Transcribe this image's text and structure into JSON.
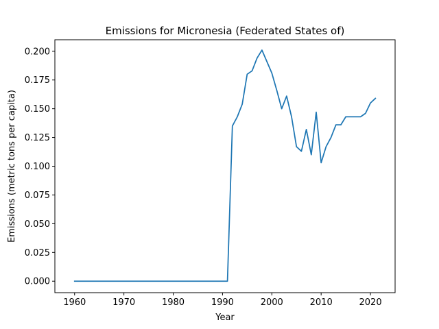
{
  "chart_data": {
    "type": "line",
    "title": "Emissions for Micronesia (Federated States of)",
    "xlabel": "Year",
    "ylabel": "Emissions (metric tons per capita)",
    "xlim": [
      1956,
      2025
    ],
    "ylim": [
      -0.01,
      0.21
    ],
    "xticks": [
      1960,
      1970,
      1980,
      1990,
      2000,
      2010,
      2020
    ],
    "yticks": [
      0.0,
      0.025,
      0.05,
      0.075,
      0.1,
      0.125,
      0.15,
      0.175,
      0.2
    ],
    "xtick_labels": [
      "1960",
      "1970",
      "1980",
      "1990",
      "2000",
      "2010",
      "2020"
    ],
    "ytick_labels": [
      "0.000",
      "0.025",
      "0.050",
      "0.075",
      "0.100",
      "0.125",
      "0.150",
      "0.175",
      "0.200"
    ],
    "grid": false,
    "legend": "none",
    "series": [
      {
        "color": "#1f77b4",
        "x": [
          1960,
          1961,
          1962,
          1963,
          1964,
          1965,
          1966,
          1967,
          1968,
          1969,
          1970,
          1971,
          1972,
          1973,
          1974,
          1975,
          1976,
          1977,
          1978,
          1979,
          1980,
          1981,
          1982,
          1983,
          1984,
          1985,
          1986,
          1987,
          1988,
          1989,
          1990,
          1991,
          1992,
          1993,
          1994,
          1995,
          1996,
          1997,
          1998,
          1999,
          2000,
          2001,
          2002,
          2003,
          2004,
          2005,
          2006,
          2007,
          2008,
          2009,
          2010,
          2011,
          2012,
          2013,
          2014,
          2015,
          2016,
          2017,
          2018,
          2019,
          2020,
          2021
        ],
        "y": [
          0,
          0,
          0,
          0,
          0,
          0,
          0,
          0,
          0,
          0,
          0,
          0,
          0,
          0,
          0,
          0,
          0,
          0,
          0,
          0,
          0,
          0,
          0,
          0,
          0,
          0,
          0,
          0,
          0,
          0,
          0,
          0,
          0.135,
          0.143,
          0.154,
          0.18,
          0.183,
          0.194,
          0.201,
          0.191,
          0.181,
          0.166,
          0.15,
          0.161,
          0.143,
          0.117,
          0.113,
          0.132,
          0.11,
          0.147,
          0.103,
          0.117,
          0.125,
          0.136,
          0.136,
          0.143,
          0.143,
          0.143,
          0.143,
          0.146,
          0.155,
          0.159
        ]
      }
    ]
  }
}
